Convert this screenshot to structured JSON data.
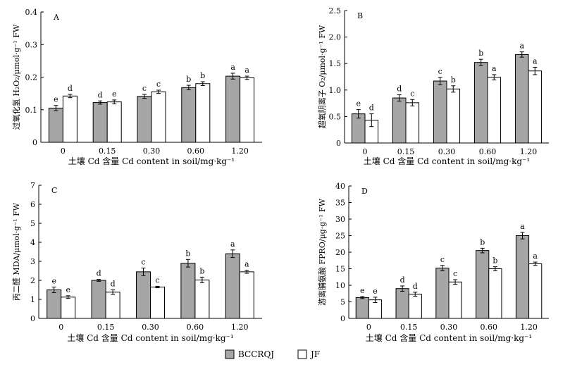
{
  "legend": {
    "items": [
      {
        "label": "BCCRQJ",
        "color": "#a6a6a6"
      },
      {
        "label": "JF",
        "color": "#ffffff"
      }
    ]
  },
  "chart_data": [
    {
      "panel": "A",
      "type": "bar",
      "ylabel": "过氧化氢 H₂O₂/μmol·g⁻¹ FW",
      "xlabel": "土壤 Cd 含量  Cd content in soil/mg·kg⁻¹",
      "categories": [
        "0",
        "0.15",
        "0.30",
        "0.60",
        "1.20"
      ],
      "ylim": [
        0,
        0.4
      ],
      "yticks": [
        0,
        0.1,
        0.2,
        0.3,
        0.4
      ],
      "ytick_labels": [
        "0",
        "0.1",
        "0.2",
        "0.3",
        "0.4"
      ],
      "series": [
        {
          "name": "BCCRQJ",
          "values": [
            0.105,
            0.122,
            0.141,
            0.168,
            0.203
          ],
          "errors": [
            0.008,
            0.005,
            0.006,
            0.007,
            0.009
          ],
          "labels": [
            "e",
            "d",
            "c",
            "b",
            "a"
          ]
        },
        {
          "name": "JF",
          "values": [
            0.142,
            0.124,
            0.155,
            0.18,
            0.198
          ],
          "errors": [
            0.005,
            0.006,
            0.005,
            0.006,
            0.005
          ],
          "labels": [
            "d",
            "e",
            "c",
            "b",
            "a"
          ]
        }
      ]
    },
    {
      "panel": "B",
      "type": "bar",
      "ylabel": "超氧阴离子 O₂/μmol·g⁻¹ FW",
      "xlabel": "土壤 Cd 含量  Cd content in soil/mg·kg⁻¹",
      "categories": [
        "0",
        "0.15",
        "0.30",
        "0.60",
        "1.20"
      ],
      "ylim": [
        0,
        2.5
      ],
      "yticks": [
        0,
        0.5,
        1.0,
        1.5,
        2.0,
        2.5
      ],
      "ytick_labels": [
        "0",
        "0.5",
        "1.0",
        "1.5",
        "2.0",
        "2.5"
      ],
      "series": [
        {
          "name": "BCCRQJ",
          "values": [
            0.55,
            0.85,
            1.17,
            1.52,
            1.67
          ],
          "errors": [
            0.08,
            0.06,
            0.07,
            0.06,
            0.05
          ],
          "labels": [
            "e",
            "d",
            "c",
            "b",
            "a"
          ]
        },
        {
          "name": "JF",
          "values": [
            0.43,
            0.76,
            1.02,
            1.24,
            1.36
          ],
          "errors": [
            0.12,
            0.06,
            0.06,
            0.05,
            0.07
          ],
          "labels": [
            "d",
            "c",
            "b",
            "a",
            "a"
          ]
        }
      ]
    },
    {
      "panel": "C",
      "type": "bar",
      "ylabel": "丙二醛 MDA/μmol·g⁻¹ FW",
      "xlabel": "土壤 Cd 含量  Cd content in soil/mg·kg⁻¹",
      "categories": [
        "0",
        "0.15",
        "0.30",
        "0.60",
        "1.20"
      ],
      "ylim": [
        0,
        7
      ],
      "yticks": [
        0,
        1,
        2,
        3,
        4,
        5,
        6,
        7
      ],
      "ytick_labels": [
        "0",
        "1",
        "2",
        "3",
        "4",
        "5",
        "6",
        "7"
      ],
      "series": [
        {
          "name": "BCCRQJ",
          "values": [
            1.5,
            2.0,
            2.45,
            2.9,
            3.4
          ],
          "errors": [
            0.15,
            0.05,
            0.2,
            0.2,
            0.2
          ],
          "labels": [
            "e",
            "d",
            "c",
            "b",
            "a"
          ]
        },
        {
          "name": "JF",
          "values": [
            1.12,
            1.38,
            1.65,
            2.02,
            2.45
          ],
          "errors": [
            0.07,
            0.12,
            0.04,
            0.15,
            0.08
          ],
          "labels": [
            "e",
            "d",
            "c",
            "b",
            "a"
          ]
        }
      ]
    },
    {
      "panel": "D",
      "type": "bar",
      "ylabel": "游离脯氨酸 FPRO/μg·g⁻¹ FW",
      "xlabel": "土壤 Cd 含量  Cd content in soil/mg·kg⁻¹",
      "categories": [
        "0",
        "0.15",
        "0.30",
        "0.60",
        "1.20"
      ],
      "ylim": [
        0,
        40
      ],
      "yticks": [
        0,
        5,
        10,
        15,
        20,
        25,
        30,
        35,
        40
      ],
      "ytick_labels": [
        "0",
        "5",
        "10",
        "15",
        "20",
        "25",
        "30",
        "35",
        "40"
      ],
      "series": [
        {
          "name": "BCCRQJ",
          "values": [
            6.3,
            9.0,
            15.2,
            20.5,
            25.0
          ],
          "errors": [
            0.3,
            0.8,
            0.8,
            0.7,
            1.0
          ],
          "labels": [
            "e",
            "d",
            "c",
            "b",
            "a"
          ]
        },
        {
          "name": "JF",
          "values": [
            5.6,
            7.3,
            11.0,
            15.0,
            16.5
          ],
          "errors": [
            0.8,
            0.6,
            0.7,
            0.6,
            0.5
          ],
          "labels": [
            "e",
            "d",
            "c",
            "b",
            "a"
          ]
        }
      ]
    }
  ]
}
